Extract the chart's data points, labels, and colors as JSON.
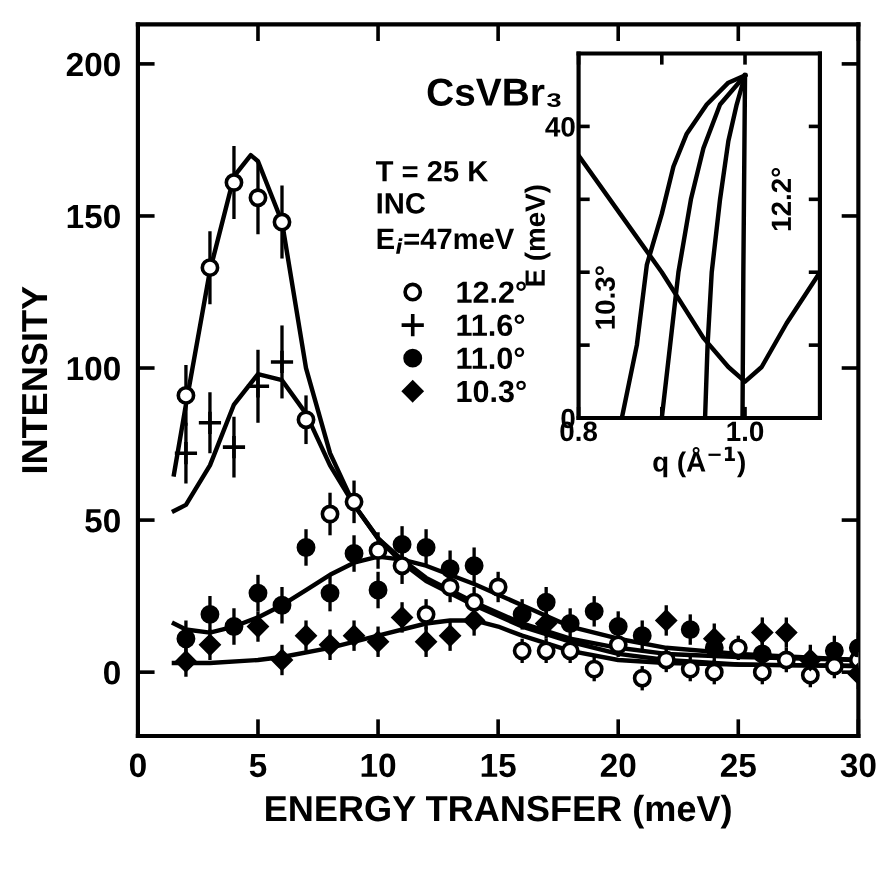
{
  "chart_data": [
    {
      "type": "scatter",
      "xlabel": "ENERGY TRANSFER (meV)",
      "ylabel": "INTENSITY",
      "annotations": [
        "CsVBr₃",
        "T = 25 K",
        "INC",
        "E$_{i}$=47meV"
      ],
      "xlim": [
        0,
        30
      ],
      "ylim": [
        -21,
        213
      ],
      "xticks": [
        0,
        5,
        10,
        15,
        20,
        25,
        30
      ],
      "yticks": [
        0,
        50,
        100,
        150,
        200
      ],
      "legend": "top right",
      "grid": false,
      "series": [
        {
          "name": "12.2°",
          "type": "scatter",
          "marker": "circle",
          "color": "#ffffff",
          "x": [
            2,
            3,
            4,
            5,
            6,
            7,
            8,
            9,
            10,
            11,
            12,
            13,
            14,
            15,
            16,
            17,
            18,
            19,
            20,
            21,
            22,
            23,
            24,
            25,
            26,
            27,
            28,
            29,
            30
          ],
          "values": [
            91,
            133,
            161,
            156,
            148,
            83,
            52,
            56,
            40,
            35,
            19,
            28,
            23,
            28,
            7,
            7,
            7,
            1,
            9,
            -2,
            4,
            1,
            0,
            8,
            0,
            4,
            -1,
            2,
            4
          ],
          "errors": [
            10,
            12,
            12,
            12,
            12,
            8,
            7,
            7,
            6,
            6,
            5,
            5,
            5,
            5,
            4,
            4,
            4,
            4,
            4,
            4,
            4,
            4,
            4,
            4,
            4,
            4,
            4,
            4,
            4
          ]
        },
        {
          "name": "11.6°",
          "type": "scatter",
          "marker": "cross",
          "color": "#000000",
          "x": [
            2,
            3,
            4,
            5,
            6
          ],
          "values": [
            72,
            82,
            74,
            94,
            102
          ],
          "errors": [
            10,
            10,
            10,
            12,
            12
          ]
        },
        {
          "name": "11.0°",
          "type": "scatter",
          "marker": "circle",
          "color": "#000000",
          "x": [
            2,
            3,
            4,
            5,
            6,
            7,
            8,
            9,
            10,
            11,
            12,
            13,
            14,
            16,
            17,
            18,
            19,
            20,
            21,
            23,
            24,
            26,
            29,
            30
          ],
          "values": [
            11,
            19,
            15,
            26,
            22,
            41,
            26,
            39,
            27,
            42,
            41,
            34,
            35,
            19,
            23,
            16,
            20,
            15,
            12,
            14,
            8,
            6,
            7,
            8
          ],
          "errors": [
            6,
            6,
            6,
            6,
            6,
            6,
            6,
            6,
            6,
            6,
            6,
            6,
            6,
            5,
            5,
            5,
            5,
            5,
            5,
            5,
            5,
            5,
            5,
            5
          ]
        },
        {
          "name": "10.3°",
          "type": "scatter",
          "marker": "diamond",
          "color": "#000000",
          "x": [
            2,
            3,
            5,
            6,
            7,
            8,
            9,
            10,
            11,
            12,
            13,
            14,
            17,
            22,
            24,
            26,
            27,
            28,
            30
          ],
          "values": [
            3.5,
            9,
            15,
            4,
            12,
            9,
            12,
            10,
            18,
            10,
            12,
            17,
            16,
            17,
            11,
            13,
            13,
            4,
            -0.5
          ],
          "errors": [
            5,
            5,
            5,
            5,
            5,
            5,
            5,
            5,
            5,
            5,
            5,
            5,
            5,
            5,
            5,
            5,
            5,
            5,
            5
          ]
        },
        {
          "type": "line",
          "color": "#000000",
          "x": [
            1.5,
            2,
            3,
            4,
            4.7,
            5,
            6,
            7,
            8,
            9,
            10,
            11,
            12,
            14,
            16,
            18,
            20,
            22,
            25,
            30
          ],
          "values": [
            65,
            88,
            132,
            163,
            170,
            168,
            148,
            100,
            72,
            55,
            44,
            36,
            30,
            22,
            15,
            10,
            6,
            4,
            2.5,
            2
          ]
        },
        {
          "type": "line",
          "color": "#000000",
          "x": [
            1.5,
            2,
            3,
            4,
            5,
            6,
            7,
            8,
            9,
            10,
            11,
            12,
            14,
            16,
            18,
            20,
            22,
            25,
            30
          ],
          "values": [
            53,
            55,
            68,
            88,
            98,
            96,
            85,
            68,
            55,
            44,
            37,
            31,
            23,
            16,
            11,
            8,
            6,
            5,
            4
          ]
        },
        {
          "type": "line",
          "color": "#000000",
          "x": [
            1.5,
            2,
            3,
            4,
            5,
            6,
            7,
            8,
            9,
            10,
            11,
            12,
            14,
            16,
            18,
            20,
            22,
            25,
            30
          ],
          "values": [
            16,
            14,
            13,
            15,
            18,
            22,
            27,
            32,
            36,
            38,
            37,
            35,
            29,
            22,
            15,
            11,
            8,
            6,
            4
          ]
        },
        {
          "type": "line",
          "color": "#000000",
          "x": [
            1.5,
            3,
            5,
            6,
            8,
            10,
            12,
            13,
            14,
            15,
            16,
            18,
            20,
            22,
            25,
            30
          ],
          "values": [
            3,
            3,
            4,
            5,
            8,
            12,
            16,
            17,
            17,
            15,
            12,
            7,
            4,
            3,
            2.5,
            2
          ]
        }
      ]
    },
    {
      "type": "line",
      "xlabel": "q (Å$^{−1}$)",
      "ylabel": "E (meV)",
      "xlim": [
        0.8,
        1.09
      ],
      "ylim": [
        0,
        50
      ],
      "xticks": [
        0.8,
        {
          "value": 0.9,
          "label": null
        },
        {
          "value": 1.0,
          "label": "1.0"
        }
      ],
      "yticks": [
        0,
        {
          "value": 10,
          "label": null
        },
        {
          "value": 20,
          "label": null
        },
        {
          "value": 30,
          "label": null
        },
        40
      ],
      "annotations": [
        "10.3°",
        "12.2°"
      ],
      "series": [
        {
          "color": "#000000",
          "x": [
            0.8,
            0.85,
            0.9,
            0.95,
            0.98,
            1.0,
            1.02,
            1.05,
            1.09
          ],
          "values": [
            36,
            28,
            20,
            11,
            7,
            5,
            7,
            13,
            20
          ]
        },
        {
          "color": "#000000",
          "x": [
            0.852,
            0.87,
            0.882,
            0.9,
            0.914,
            0.93,
            0.954,
            0.98,
            1.0
          ],
          "values": [
            0,
            10,
            21,
            28,
            34.5,
            39,
            43,
            46,
            47
          ]
        },
        {
          "color": "#000000",
          "x": [
            0.9,
            0.91,
            0.92,
            0.935,
            0.95,
            0.97,
            1.0
          ],
          "values": [
            0,
            10,
            20,
            30,
            37,
            43,
            47
          ]
        },
        {
          "color": "#000000",
          "x": [
            0.952,
            0.955,
            0.96,
            0.97,
            0.98,
            0.99,
            1.0
          ],
          "values": [
            0,
            10,
            20,
            30,
            38,
            43,
            47
          ]
        },
        {
          "color": "#000000",
          "x": [
            0.997,
            0.998,
            1.0
          ],
          "values": [
            0,
            20,
            47
          ]
        }
      ]
    }
  ]
}
